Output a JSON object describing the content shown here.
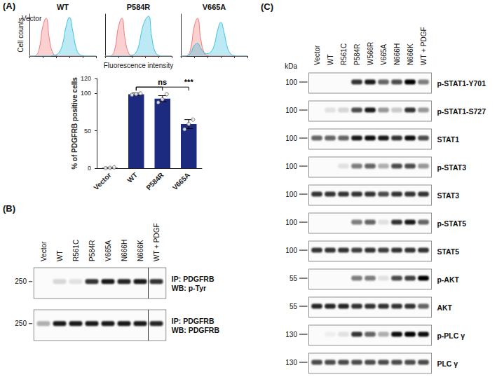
{
  "panels": [
    "(A)",
    "(B)",
    "(C)"
  ],
  "chart_data": [
    {
      "type": "area",
      "title": "WT",
      "y_label": "Cell counts",
      "x": [
        0,
        0.25,
        0.5,
        0.75,
        1,
        1.25,
        1.5,
        1.75,
        2,
        2.25,
        2.5,
        2.75,
        3,
        3.25,
        3.5,
        3.75,
        4,
        4.25,
        4.5,
        4.75,
        5
      ],
      "xlim": [
        0,
        5
      ],
      "xticks": [
        0,
        1,
        2,
        3,
        4,
        5
      ],
      "ylim": [
        0,
        100
      ],
      "tick_labels": false,
      "series": [
        {
          "color": "#f07878",
          "values": [
            0,
            0,
            2,
            20,
            70,
            90,
            40,
            8,
            1,
            0,
            0,
            0,
            0,
            0,
            0,
            0,
            0,
            0,
            0,
            0,
            0
          ]
        },
        {
          "color": "#3cc0e0",
          "values": [
            0,
            0,
            0,
            0,
            0,
            0,
            0,
            1,
            3,
            10,
            30,
            70,
            92,
            60,
            20,
            4,
            1,
            0,
            0,
            0,
            0
          ]
        }
      ],
      "annotations": [
        {
          "text": "Vector",
          "series": 0
        }
      ]
    },
    {
      "type": "area",
      "title": "P584R",
      "x_label": "Fluorescence intensity",
      "x": [
        0,
        0.25,
        0.5,
        0.75,
        1,
        1.25,
        1.5,
        1.75,
        2,
        2.25,
        2.5,
        2.75,
        3,
        3.25,
        3.5,
        3.75,
        4,
        4.25,
        4.5,
        4.75,
        5
      ],
      "xlim": [
        0,
        5
      ],
      "xticks": [
        0,
        1,
        2,
        3,
        4,
        5
      ],
      "ylim": [
        0,
        100
      ],
      "tick_labels": false,
      "series": [
        {
          "color": "#f07878",
          "values": [
            0,
            0,
            2,
            20,
            70,
            90,
            40,
            8,
            1,
            0,
            0,
            0,
            0,
            0,
            0,
            0,
            0,
            0,
            0,
            0,
            0
          ]
        },
        {
          "color": "#3cc0e0",
          "values": [
            0,
            0,
            0,
            0,
            0,
            0,
            0,
            0,
            2,
            6,
            22,
            60,
            85,
            95,
            45,
            10,
            2,
            0,
            0,
            0,
            0
          ]
        }
      ]
    },
    {
      "type": "area",
      "title": "V665A",
      "x": [
        0,
        0.25,
        0.5,
        0.75,
        1,
        1.25,
        1.5,
        1.75,
        2,
        2.25,
        2.5,
        2.75,
        3,
        3.25,
        3.5,
        3.75,
        4,
        4.25,
        4.5,
        4.75,
        5
      ],
      "xlim": [
        0,
        5
      ],
      "xticks": [
        0,
        1,
        2,
        3,
        4,
        5
      ],
      "ylim": [
        0,
        100
      ],
      "tick_labels": false,
      "series": [
        {
          "color": "#f07878",
          "values": [
            0,
            0,
            2,
            20,
            70,
            90,
            40,
            8,
            1,
            0,
            0,
            0,
            0,
            0,
            0,
            0,
            0,
            0,
            0,
            0,
            0
          ]
        },
        {
          "color": "#3cc0e0",
          "values": [
            0,
            0,
            1,
            8,
            25,
            30,
            18,
            8,
            6,
            10,
            25,
            60,
            80,
            55,
            20,
            5,
            1,
            0,
            0,
            0,
            0
          ]
        }
      ]
    },
    {
      "type": "bar",
      "y_label": "% of PDGFRB positive cells",
      "categories": [
        "Vector",
        "WT",
        "P584R",
        "V665A"
      ],
      "values": [
        0.5,
        99,
        93,
        59
      ],
      "errors": [
        0.5,
        1.5,
        4,
        6
      ],
      "points": [
        [
          0,
          0.5,
          1
        ],
        [
          98,
          99,
          100
        ],
        [
          88,
          92,
          99
        ],
        [
          52,
          59,
          65
        ]
      ],
      "color": "#1c2a80",
      "ylim": [
        0,
        120
      ],
      "yticks": [
        0,
        50,
        100
      ],
      "grid": false,
      "annotations": [
        {
          "label": "ns",
          "from": "WT",
          "to": "P584R"
        },
        {
          "label": "***",
          "from": "WT",
          "to": "V665A"
        }
      ]
    }
  ],
  "blots": [
    {
      "panel": "(B)",
      "lanes": [
        "Vector",
        "WT",
        "R561C",
        "P584R",
        "V665A",
        "N666H",
        "N666K",
        "WT + PDGF"
      ],
      "rows": [
        {
          "marker": 250,
          "label": [
            "IP: PDGFRB",
            "WB: p-Tyr"
          ],
          "bands": [
            0,
            0.15,
            0.1,
            0.8,
            0.9,
            0.85,
            0.9,
            0.8
          ]
        },
        {
          "marker": 250,
          "label": [
            "IP: PDGFRB",
            "WB: PDGFRB"
          ],
          "bands": [
            0.3,
            0.9,
            0.9,
            0.9,
            0.9,
            0.9,
            0.9,
            0.85
          ]
        }
      ]
    },
    {
      "panel": "(C)",
      "unit": "kDa",
      "lanes": [
        "Vector",
        "WT",
        "R561C",
        "P584R",
        "W566R",
        "V665A",
        "N666H",
        "N666K",
        "WT + PDGF"
      ],
      "rows": [
        {
          "marker": 100,
          "label": [
            "p-STAT1-Y701"
          ],
          "bands": [
            0,
            0,
            0,
            0.8,
            0.9,
            0.6,
            0.7,
            1,
            0.5
          ]
        },
        {
          "marker": 100,
          "label": [
            "p-STAT1-S727"
          ],
          "bands": [
            0,
            0.1,
            0.15,
            0.7,
            0.9,
            0.4,
            0.2,
            0.8,
            0.4
          ]
        },
        {
          "marker": 100,
          "label": [
            "STAT1"
          ],
          "bands": [
            0.6,
            0.6,
            0.6,
            0.9,
            0.95,
            0.9,
            0.8,
            0.95,
            0.7
          ]
        },
        {
          "marker": 100,
          "label": [
            "p-STAT3"
          ],
          "bands": [
            0,
            0,
            0.1,
            0.5,
            0.6,
            0.3,
            0.7,
            0.7,
            0.4
          ]
        },
        {
          "marker": 100,
          "label": [
            "STAT3"
          ],
          "bands": [
            0.8,
            0.8,
            0.8,
            0.8,
            0.8,
            0.7,
            0.8,
            0.8,
            0.8
          ]
        },
        {
          "marker": 100,
          "label": [
            "p-STAT5"
          ],
          "bands": [
            0,
            0,
            0,
            0.5,
            0.6,
            0.1,
            0.8,
            0.9,
            0.6
          ]
        },
        {
          "marker": 100,
          "label": [
            "STAT5"
          ],
          "bands": [
            0.8,
            0.8,
            0.8,
            0.75,
            0.8,
            0.75,
            0.8,
            0.8,
            0.8
          ]
        },
        {
          "marker": 55,
          "label": [
            "p-AKT"
          ],
          "bands": [
            0,
            0,
            0,
            0.5,
            0.5,
            0.1,
            0.7,
            0.75,
            1
          ]
        },
        {
          "marker": 55,
          "label": [
            "AKT"
          ],
          "bands": [
            0.85,
            0.85,
            0.85,
            0.8,
            0.8,
            0.8,
            0.8,
            0.8,
            0.6
          ]
        },
        {
          "marker": 130,
          "label": [
            "p-PLC γ"
          ],
          "bands": [
            0,
            0.05,
            0.1,
            0.8,
            0.6,
            0.3,
            0.95,
            1,
            0.95
          ]
        },
        {
          "marker": 130,
          "label": [
            "PLC γ"
          ],
          "bands": [
            0.7,
            0.7,
            0.7,
            0.7,
            0.7,
            0.7,
            0.7,
            0.7,
            0.7
          ]
        }
      ]
    }
  ]
}
